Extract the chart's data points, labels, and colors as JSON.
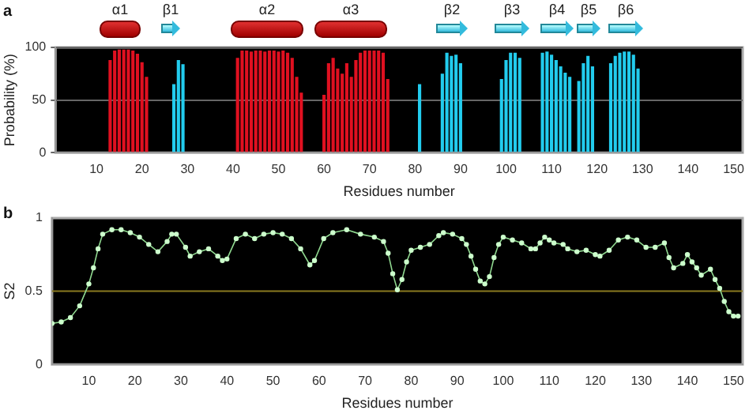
{
  "chart_data": [
    {
      "type": "bar",
      "title": "a",
      "xlabel": "Residues number",
      "ylabel": "Probability (%)",
      "legend": false,
      "grid": "y",
      "xlim": [
        1,
        152
      ],
      "xticks": [
        10,
        20,
        30,
        40,
        50,
        60,
        70,
        80,
        90,
        100,
        110,
        120,
        130,
        140,
        150
      ],
      "ylim": [
        0,
        100
      ],
      "yticks": [
        0,
        50,
        100
      ],
      "series": [
        {
          "color": "#e01020",
          "x": [
            13,
            14,
            15,
            16,
            17,
            18,
            19,
            20,
            21,
            41,
            42,
            43,
            44,
            45,
            46,
            47,
            48,
            49,
            50,
            51,
            52,
            53,
            54,
            55,
            60,
            61,
            62,
            63,
            64,
            65,
            66,
            67,
            68,
            69,
            70,
            71,
            72,
            73,
            74
          ],
          "values": [
            88,
            97,
            98,
            98,
            98,
            97,
            94,
            86,
            72,
            90,
            97,
            97,
            96,
            97,
            97,
            96,
            97,
            97,
            96,
            97,
            95,
            90,
            72,
            57,
            55,
            85,
            90,
            80,
            75,
            85,
            72,
            88,
            95,
            97,
            97,
            97,
            97,
            95,
            70
          ]
        },
        {
          "color": "#22ccee",
          "x": [
            27,
            28,
            29,
            81,
            86,
            87,
            88,
            89,
            90,
            99,
            100,
            101,
            102,
            103,
            108,
            109,
            110,
            111,
            112,
            113,
            114,
            116,
            117,
            118,
            119,
            123,
            124,
            125,
            126,
            127,
            128,
            129
          ],
          "values": [
            65,
            88,
            84,
            65,
            75,
            95,
            92,
            93,
            85,
            70,
            88,
            95,
            95,
            90,
            95,
            96,
            93,
            88,
            82,
            76,
            72,
            68,
            85,
            92,
            82,
            85,
            92,
            95,
            96,
            96,
            93,
            80
          ]
        }
      ],
      "annotations": [
        "α1",
        "β1",
        "α2",
        "α3",
        "β2",
        "β3",
        "β4",
        "β5",
        "β6"
      ]
    },
    {
      "type": "line",
      "title": "b",
      "xlabel": "Residues number",
      "ylabel": "S2",
      "legend": false,
      "marker": "circle",
      "ref_lines": [
        {
          "axis": "y",
          "value": 0.5,
          "color": "#8a7a20"
        }
      ],
      "xlim": [
        2,
        152
      ],
      "xticks": [
        10,
        20,
        30,
        40,
        50,
        60,
        70,
        80,
        90,
        100,
        110,
        120,
        130,
        140,
        150
      ],
      "ylim": [
        0,
        1
      ],
      "yticks": [
        0,
        0.5,
        1
      ],
      "series": [
        {
          "color": "#8fd88f",
          "x": [
            2,
            4,
            6,
            8,
            10,
            11,
            12,
            13,
            15,
            17,
            19,
            21,
            23,
            25,
            27,
            28,
            29,
            31,
            32,
            34,
            36,
            38,
            39,
            40,
            42,
            44,
            46,
            48,
            50,
            52,
            54,
            56,
            58,
            59,
            61,
            63,
            66,
            69,
            72,
            74,
            75,
            76,
            77,
            78,
            79,
            80,
            82,
            84,
            86,
            87,
            89,
            91,
            92,
            93,
            94,
            95,
            96,
            97,
            98,
            99,
            100,
            102,
            104,
            106,
            107,
            108,
            109,
            110,
            111,
            113,
            114,
            116,
            118,
            120,
            121,
            123,
            125,
            127,
            129,
            131,
            133,
            135,
            136,
            137,
            139,
            140,
            141,
            142,
            143,
            145,
            146,
            147,
            148,
            149,
            150,
            151
          ],
          "values": [
            0.28,
            0.29,
            0.32,
            0.4,
            0.55,
            0.66,
            0.79,
            0.89,
            0.92,
            0.92,
            0.9,
            0.87,
            0.82,
            0.77,
            0.84,
            0.89,
            0.89,
            0.8,
            0.74,
            0.77,
            0.79,
            0.74,
            0.71,
            0.72,
            0.86,
            0.89,
            0.86,
            0.89,
            0.9,
            0.89,
            0.86,
            0.79,
            0.68,
            0.71,
            0.86,
            0.9,
            0.92,
            0.89,
            0.87,
            0.84,
            0.76,
            0.62,
            0.51,
            0.58,
            0.7,
            0.78,
            0.8,
            0.82,
            0.88,
            0.9,
            0.89,
            0.86,
            0.82,
            0.74,
            0.65,
            0.57,
            0.55,
            0.6,
            0.73,
            0.82,
            0.87,
            0.85,
            0.83,
            0.79,
            0.79,
            0.83,
            0.87,
            0.85,
            0.83,
            0.82,
            0.79,
            0.77,
            0.78,
            0.75,
            0.74,
            0.78,
            0.85,
            0.87,
            0.85,
            0.8,
            0.8,
            0.83,
            0.73,
            0.66,
            0.69,
            0.75,
            0.7,
            0.66,
            0.61,
            0.65,
            0.58,
            0.52,
            0.43,
            0.36,
            0.33,
            0.33
          ]
        }
      ]
    }
  ]
}
